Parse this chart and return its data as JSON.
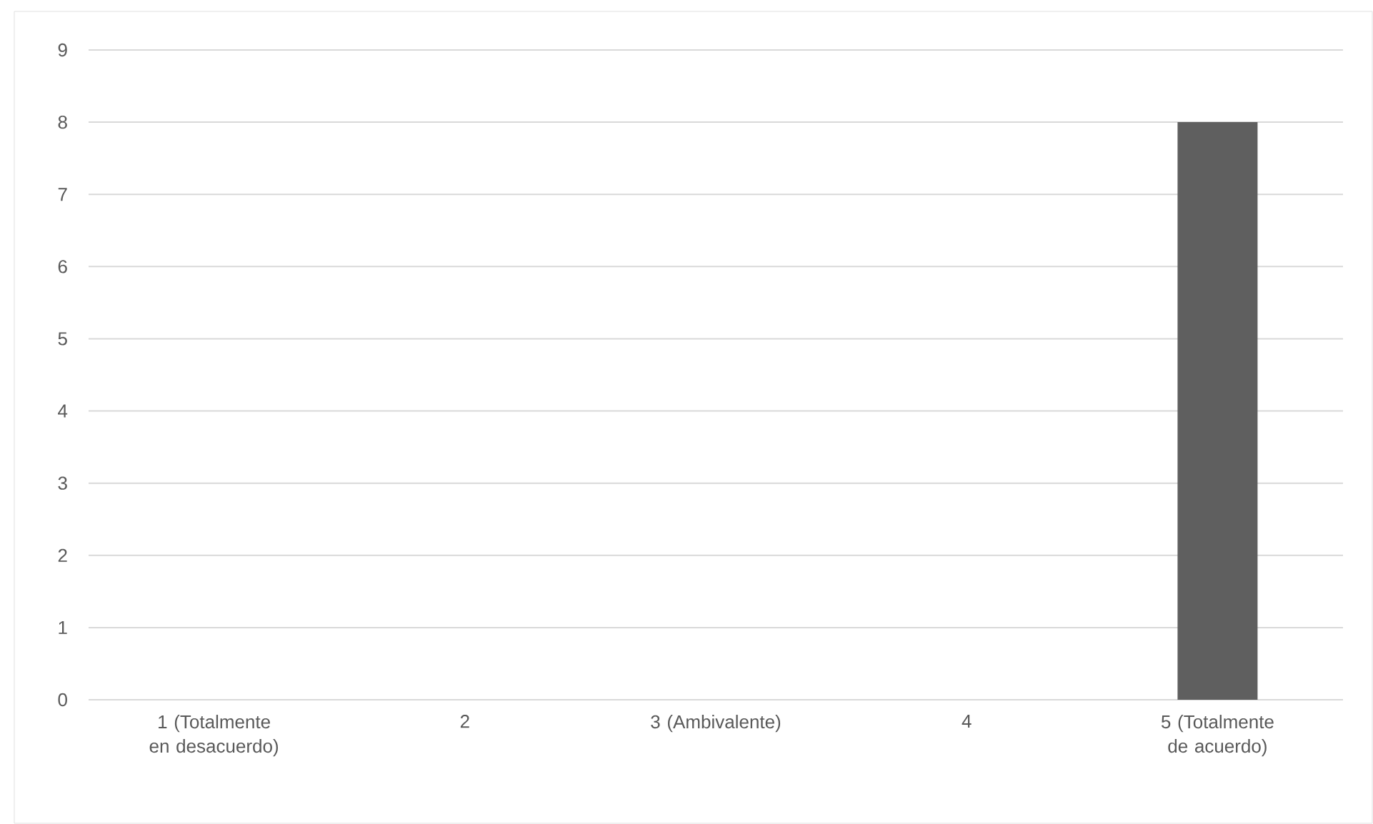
{
  "chart_data": {
    "type": "bar",
    "categories": [
      "1 (Totalmente en desacuerdo)",
      "2",
      "3 (Ambivalente)",
      "4",
      "5 (Totalmente de acuerdo)"
    ],
    "values": [
      0,
      0,
      0,
      0,
      8
    ],
    "color": "#5f5f5f",
    "ylim": [
      0,
      9
    ],
    "yticks": [
      0,
      1,
      2,
      3,
      4,
      5,
      6,
      7,
      8,
      9
    ],
    "grid": "y"
  }
}
